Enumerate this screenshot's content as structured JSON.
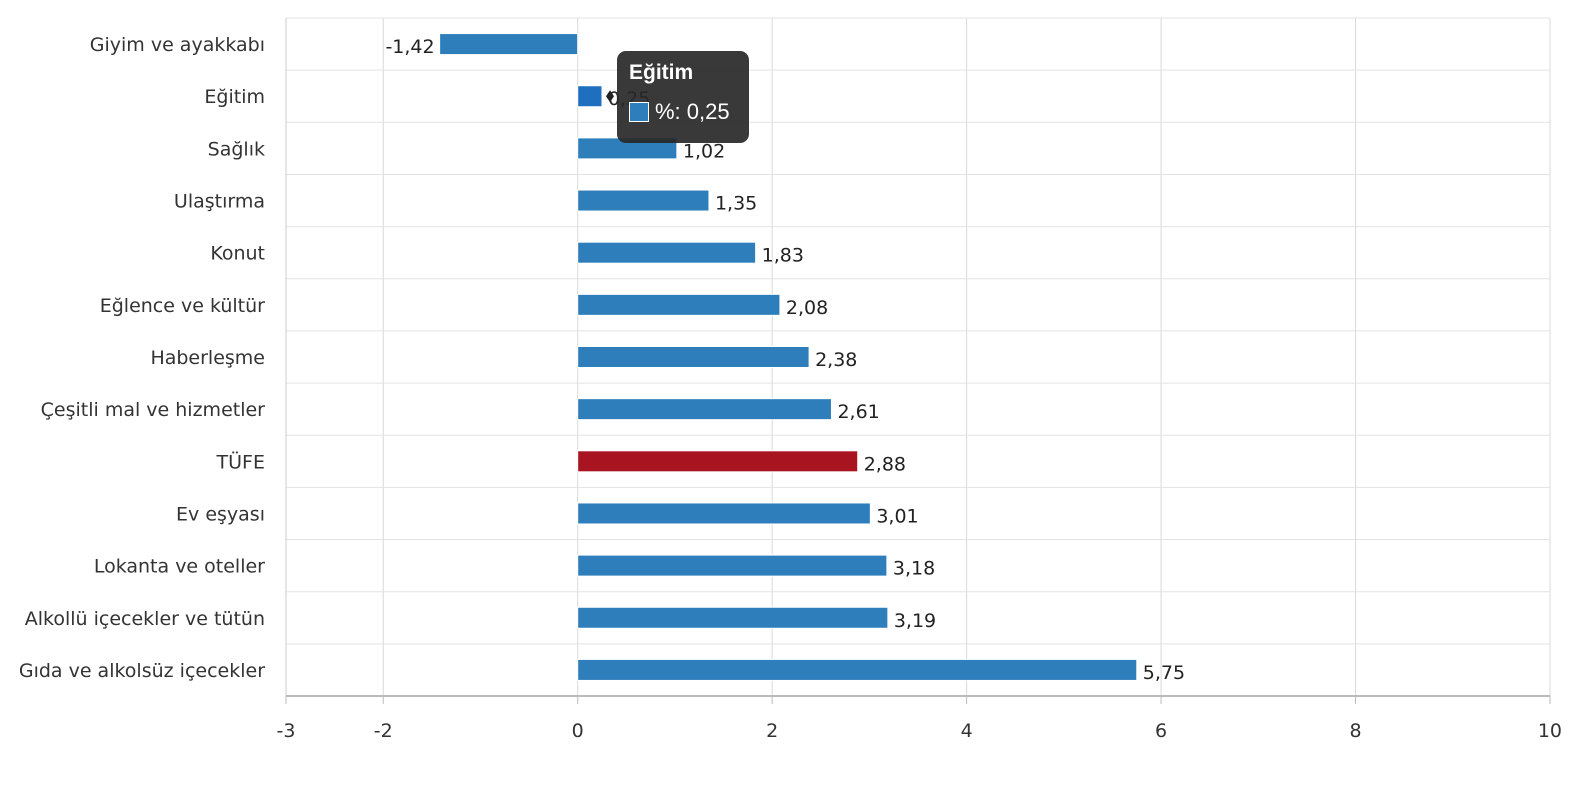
{
  "chart_data": {
    "type": "bar",
    "orientation": "horizontal",
    "categories": [
      "Giyim ve ayakkabı",
      "Eğitim",
      "Sağlık",
      "Ulaştırma",
      "Konut",
      "Eğlence ve kültür",
      "Haberleşme",
      "Çeşitli mal ve hizmetler",
      "TÜFE",
      "Ev eşyası",
      "Lokanta ve oteller",
      "Alkollü içecekler ve tütün",
      "Gıda ve alkolsüz içecekler"
    ],
    "values": [
      -1.42,
      0.25,
      1.02,
      1.35,
      1.83,
      2.08,
      2.38,
      2.61,
      2.88,
      3.01,
      3.18,
      3.19,
      5.75
    ],
    "value_labels": [
      "-1,42",
      "0,25",
      "1,02",
      "1,35",
      "1,83",
      "2,08",
      "2,38",
      "2,61",
      "2,88",
      "3,01",
      "3,18",
      "3,19",
      "5,75"
    ],
    "xlim": [
      -3,
      10
    ],
    "xticks": [
      -3,
      -2,
      0,
      2,
      4,
      6,
      8,
      10
    ],
    "xtick_labels": [
      "-3",
      "-2",
      "0",
      "2",
      "4",
      "6",
      "8",
      "10"
    ],
    "grid": true,
    "bar_color": "#2f7ebc",
    "highlight_category": "TÜFE",
    "highlight_color": "#a8141f",
    "hover_category": "Eğitim",
    "hover_color": "#1f6fc0"
  },
  "tooltip": {
    "title": "Eğitim",
    "series_label": "%",
    "value_text": "0,25",
    "row_text": "%: 0,25"
  }
}
